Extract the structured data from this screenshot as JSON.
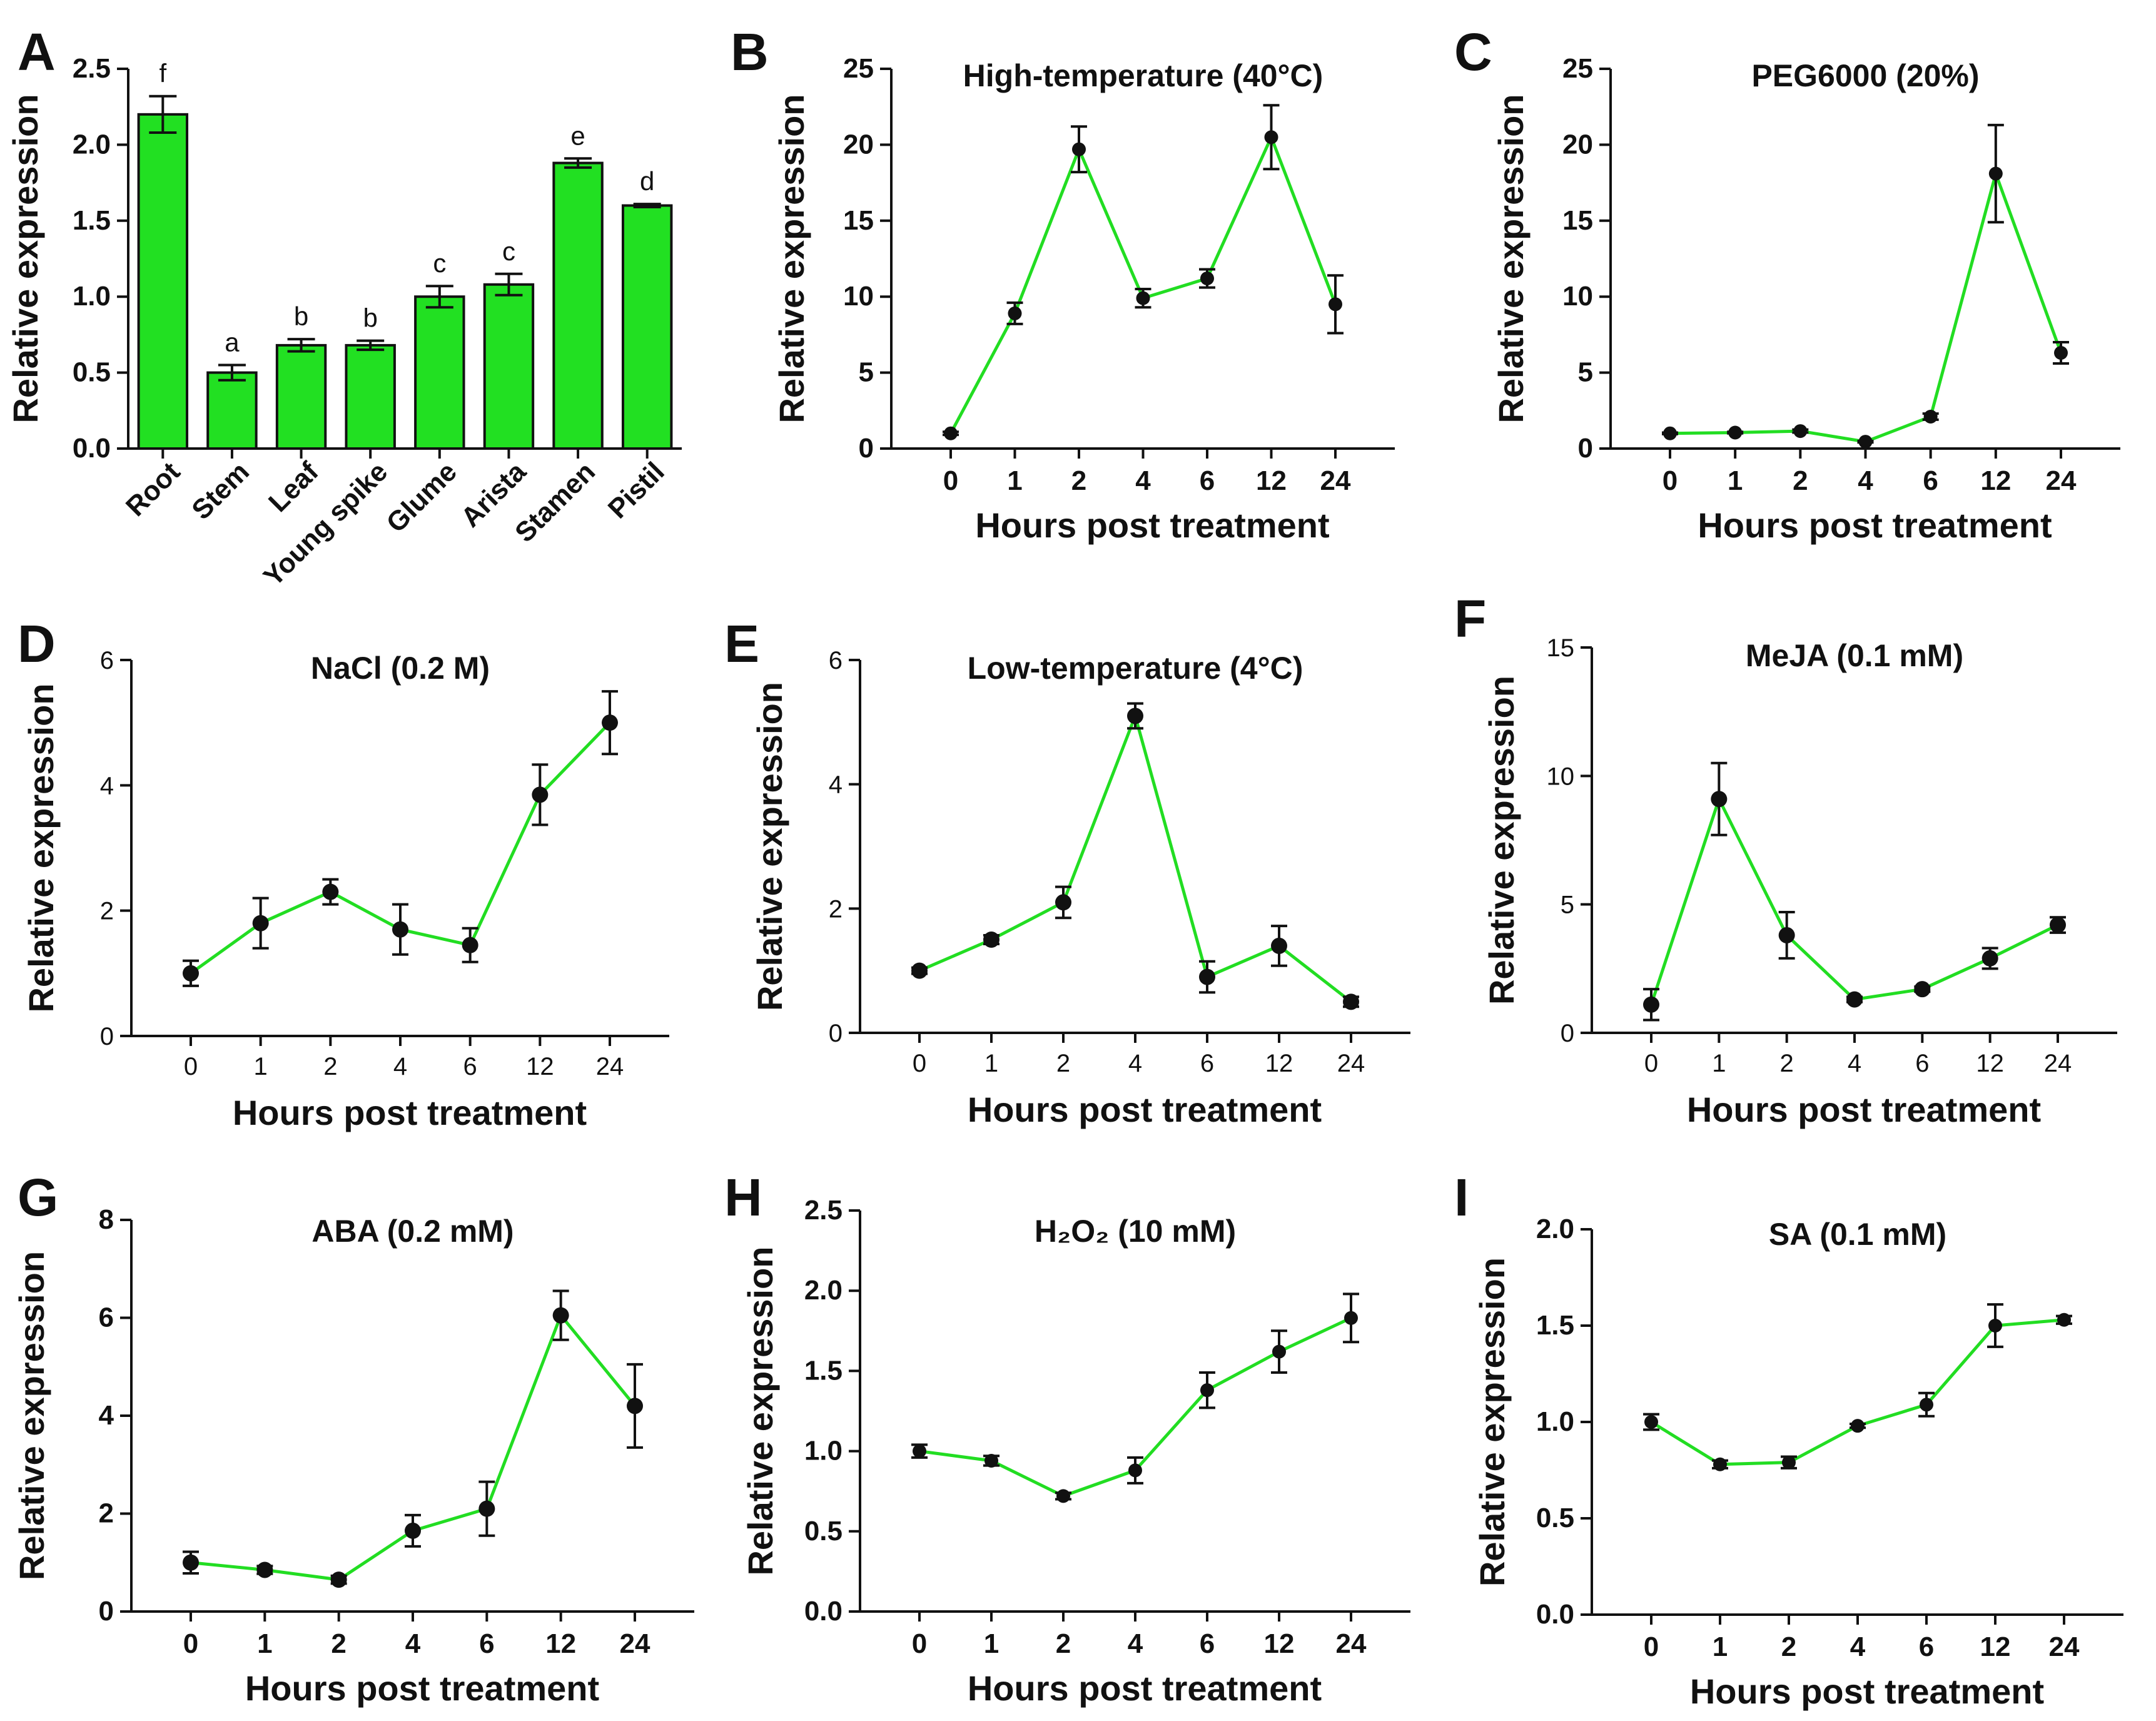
{
  "figure": {
    "x_axis_title": "Hours post treatment",
    "y_axis_title": "Relative expression"
  },
  "colors": {
    "accent": "#22dd22",
    "bar_fill": "#22e022",
    "ink": "#111111"
  },
  "chart_data": [
    {
      "panel": "A",
      "type": "bar",
      "title": "",
      "xlabel": "",
      "ylabel": "Relative expression",
      "categories": [
        "Root",
        "Stem",
        "Leaf",
        "Young spike",
        "Glume",
        "Arista",
        "Stamen",
        "Pistil"
      ],
      "values": [
        2.2,
        0.5,
        0.68,
        0.68,
        1.0,
        1.08,
        1.88,
        1.6
      ],
      "errors": [
        0.12,
        0.05,
        0.04,
        0.03,
        0.07,
        0.07,
        0.03,
        0.01
      ],
      "significance": [
        "f",
        "a",
        "b",
        "b",
        "c",
        "c",
        "e",
        "d"
      ],
      "ylim": [
        0,
        2.5
      ],
      "yticks": [
        "0.0",
        "0.5",
        "1.0",
        "1.5",
        "2.0",
        "2.5"
      ]
    },
    {
      "panel": "B",
      "type": "line",
      "title": "High-temperature (40°C)",
      "xlabel": "Hours post treatment",
      "ylabel": "Relative expression",
      "x": [
        "0",
        "1",
        "2",
        "4",
        "6",
        "12",
        "24"
      ],
      "values": [
        1.0,
        8.9,
        19.7,
        9.9,
        11.2,
        20.5,
        9.5
      ],
      "errors": [
        0.1,
        0.7,
        1.5,
        0.6,
        0.6,
        2.1,
        1.9
      ],
      "ylim": [
        0,
        25
      ],
      "yticks": [
        "0",
        "5",
        "10",
        "15",
        "20",
        "25"
      ]
    },
    {
      "panel": "C",
      "type": "line",
      "title": "PEG6000 (20%)",
      "xlabel": "Hours post treatment",
      "ylabel": "Relative expression",
      "x": [
        "0",
        "1",
        "2",
        "4",
        "6",
        "12",
        "24"
      ],
      "values": [
        1.0,
        1.05,
        1.15,
        0.45,
        2.1,
        18.1,
        6.3
      ],
      "errors": [
        0.05,
        0.05,
        0.1,
        0.05,
        0.2,
        3.2,
        0.7
      ],
      "ylim": [
        0,
        25
      ],
      "yticks": [
        "0",
        "5",
        "10",
        "15",
        "20",
        "25"
      ]
    },
    {
      "panel": "D",
      "type": "line",
      "title": "NaCl (0.2 M)",
      "xlabel": "Hours post treatment",
      "ylabel": "Relative expression",
      "x": [
        "0",
        "1",
        "2",
        "4",
        "6",
        "12",
        "24"
      ],
      "values": [
        1.0,
        1.8,
        2.3,
        1.7,
        1.45,
        3.85,
        5.0
      ],
      "errors": [
        0.2,
        0.4,
        0.2,
        0.4,
        0.27,
        0.48,
        0.5
      ],
      "ylim": [
        0,
        6
      ],
      "yticks": [
        "0",
        "2",
        "4",
        "6"
      ]
    },
    {
      "panel": "E",
      "type": "line",
      "title": "Low-temperature (4°C)",
      "xlabel": "Hours post treatment",
      "ylabel": "Relative expression",
      "x": [
        "0",
        "1",
        "2",
        "4",
        "6",
        "12",
        "24"
      ],
      "values": [
        1.0,
        1.5,
        2.1,
        5.1,
        0.9,
        1.4,
        0.5
      ],
      "errors": [
        0.05,
        0.07,
        0.25,
        0.2,
        0.25,
        0.32,
        0.08
      ],
      "ylim": [
        0,
        6
      ],
      "yticks": [
        "0",
        "2",
        "4",
        "6"
      ]
    },
    {
      "panel": "F",
      "type": "line",
      "title": "MeJA (0.1 mM)",
      "xlabel": "Hours post treatment",
      "ylabel": "Relative expression",
      "x": [
        "0",
        "1",
        "2",
        "4",
        "6",
        "12",
        "24"
      ],
      "values": [
        1.1,
        9.1,
        3.8,
        1.3,
        1.7,
        2.9,
        4.2
      ],
      "errors": [
        0.6,
        1.4,
        0.9,
        0.1,
        0.1,
        0.4,
        0.3
      ],
      "ylim": [
        0,
        15
      ],
      "yticks": [
        "0",
        "5",
        "10",
        "15"
      ]
    },
    {
      "panel": "G",
      "type": "line",
      "title": "ABA (0.2 mM)",
      "xlabel": "Hours post treatment",
      "ylabel": "Relative expression",
      "x": [
        "0",
        "1",
        "2",
        "4",
        "6",
        "12",
        "24"
      ],
      "values": [
        1.0,
        0.85,
        0.65,
        1.65,
        2.1,
        6.05,
        4.2
      ],
      "errors": [
        0.22,
        0.08,
        0.08,
        0.32,
        0.55,
        0.5,
        0.85
      ],
      "ylim": [
        0,
        8
      ],
      "yticks": [
        "0",
        "2",
        "4",
        "6",
        "8"
      ]
    },
    {
      "panel": "H",
      "type": "line",
      "title": "H₂O₂ (10 mM)",
      "xlabel": "Hours post treatment",
      "ylabel": "Relative expression",
      "x": [
        "0",
        "1",
        "2",
        "4",
        "6",
        "12",
        "24"
      ],
      "values": [
        1.0,
        0.94,
        0.72,
        0.88,
        1.38,
        1.62,
        1.83
      ],
      "errors": [
        0.04,
        0.03,
        0.02,
        0.08,
        0.11,
        0.13,
        0.15
      ],
      "ylim": [
        0,
        2.5
      ],
      "yticks": [
        "0.0",
        "0.5",
        "1.0",
        "1.5",
        "2.0",
        "2.5"
      ]
    },
    {
      "panel": "I",
      "type": "line",
      "title": "SA (0.1 mM)",
      "xlabel": "Hours post treatment",
      "ylabel": "Relative expression",
      "x": [
        "0",
        "1",
        "2",
        "4",
        "6",
        "12",
        "24"
      ],
      "values": [
        1.0,
        0.78,
        0.79,
        0.98,
        1.09,
        1.5,
        1.53
      ],
      "errors": [
        0.04,
        0.02,
        0.03,
        0.01,
        0.06,
        0.11,
        0.02
      ],
      "ylim": [
        0,
        2.0
      ],
      "yticks": [
        "0.0",
        "0.5",
        "1.0",
        "1.5",
        "2.0"
      ]
    }
  ]
}
